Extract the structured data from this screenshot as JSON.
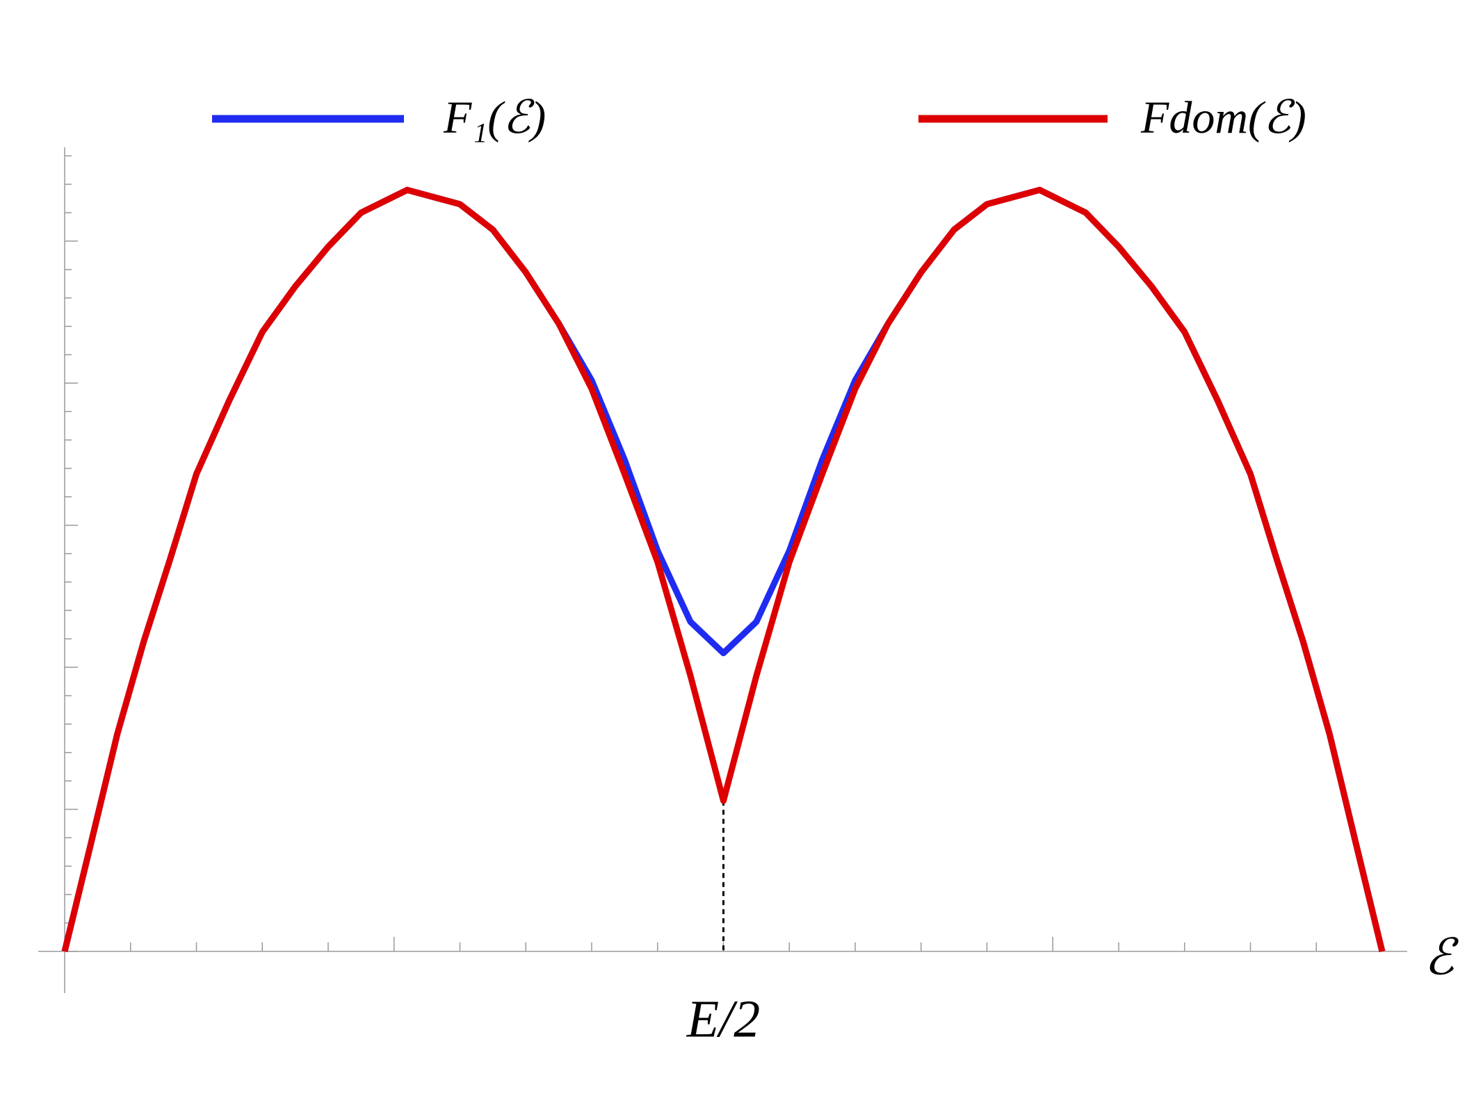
{
  "chart_data": {
    "type": "line",
    "x": [
      0,
      0.4,
      0.8,
      1.2,
      1.6,
      2,
      2.5,
      3,
      3.5,
      4,
      4.5,
      5.2,
      6,
      6.5,
      7,
      7.5,
      8,
      8.5,
      9,
      9.5,
      10,
      10.5,
      11,
      11.5,
      12,
      12.5,
      13,
      13.5,
      14,
      14.8,
      15.5,
      16,
      16.5,
      17,
      17.5,
      18,
      18.4,
      18.8,
      19.2,
      19.6,
      20
    ],
    "series": [
      {
        "name": "F₁(ℰ)",
        "color": "#1f2cf0",
        "values": [
          0,
          3.81,
          7.66,
          10.9,
          13.8,
          16.8,
          19.4,
          21.8,
          23.4,
          24.8,
          26.0,
          26.8,
          26.3,
          25.4,
          23.9,
          22.1,
          20.1,
          17.3,
          14.1,
          11.6,
          10.5,
          11.6,
          14.1,
          17.3,
          20.1,
          22.1,
          23.9,
          25.4,
          26.3,
          26.8,
          26.0,
          24.8,
          23.4,
          21.8,
          19.4,
          16.8,
          13.8,
          10.9,
          7.66,
          3.81,
          0
        ]
      },
      {
        "name": "Fdom(ℰ)",
        "color": "#dd0000",
        "values": [
          0,
          3.81,
          7.66,
          10.9,
          13.8,
          16.8,
          19.4,
          21.8,
          23.4,
          24.8,
          26.0,
          26.8,
          26.3,
          25.4,
          23.9,
          22.1,
          19.8,
          16.8,
          13.7,
          9.7,
          5.3,
          9.7,
          13.7,
          16.8,
          19.8,
          22.1,
          23.9,
          25.4,
          26.3,
          26.8,
          26.0,
          24.8,
          23.4,
          21.8,
          19.4,
          16.8,
          13.8,
          10.9,
          7.66,
          3.81,
          0
        ]
      }
    ],
    "x_label": "ℰ",
    "xlim": [
      0,
      20
    ],
    "xticks": [
      0,
      1,
      2,
      3,
      4,
      5,
      6,
      7,
      8,
      9,
      {
        "value": 10,
        "label": "E/2"
      },
      11,
      12,
      13,
      14,
      15,
      16,
      17,
      18,
      19,
      20
    ],
    "ylim": [
      -1.47,
      28.3
    ],
    "yticks": [
      0,
      1,
      2,
      3,
      4,
      5,
      6,
      7,
      8,
      9,
      10,
      11,
      12,
      13,
      14,
      15,
      16,
      17,
      18,
      19,
      20,
      21,
      22,
      23,
      24,
      25,
      26,
      27,
      28
    ],
    "legend": "top"
  }
}
